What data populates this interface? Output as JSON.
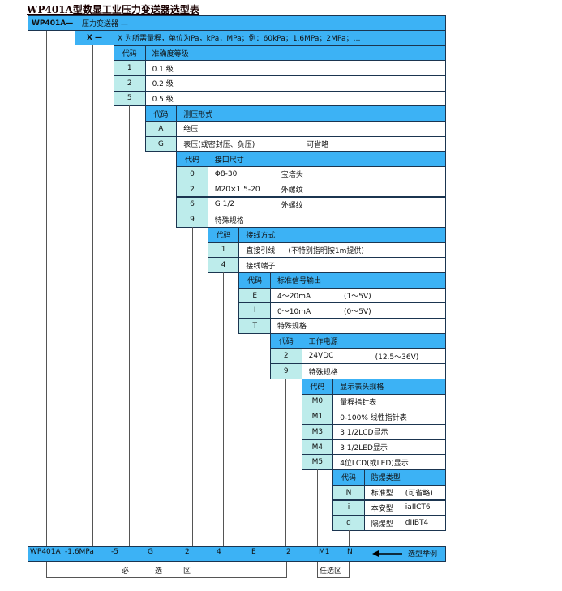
{
  "title": "WP401A型数显工业压力变送器选型表",
  "model_row": {
    "code": "WP401A—",
    "desc": "压力变送器 —"
  },
  "range_row": {
    "code": "X —",
    "desc": "X 为所需量程，单位为Pa，kPa，MPa；例：60kPa；1.6MPa；2MPa；…"
  },
  "blocks": [
    {
      "code_header": "代码",
      "title": "准确度等级",
      "rows": [
        {
          "code": "1",
          "desc": [
            "0.1 级"
          ]
        },
        {
          "code": "2",
          "desc": [
            "0.2 级"
          ]
        },
        {
          "code": "5",
          "desc": [
            "0.5 级"
          ]
        }
      ]
    },
    {
      "code_header": "代码",
      "title": "测压形式",
      "rows": [
        {
          "code": "A",
          "desc": [
            "绝压"
          ]
        },
        {
          "code": "G",
          "desc": [
            "表压(或密封压、负压)",
            "可省略"
          ]
        }
      ]
    },
    {
      "code_header": "代码",
      "title": "接口尺寸",
      "rows": [
        {
          "code": "0",
          "desc": [
            "Φ8-30",
            "宝塔头"
          ]
        },
        {
          "code": "2",
          "desc": [
            "M20×1.5-20",
            "外螺纹"
          ]
        },
        {
          "code": "6",
          "desc": [
            "G 1/2",
            "外螺纹"
          ]
        },
        {
          "code": "9",
          "desc": [
            "特殊规格"
          ]
        }
      ]
    },
    {
      "code_header": "代码",
      "title": "接线方式",
      "rows": [
        {
          "code": "1",
          "desc": [
            "直接引线",
            "(不特别指明按1m提供)"
          ]
        },
        {
          "code": "4",
          "desc": [
            "接线端子"
          ]
        }
      ]
    },
    {
      "code_header": "代码",
      "title": "标准信号输出",
      "rows": [
        {
          "code": "E",
          "desc": [
            "4～20mA",
            "(1～5V)"
          ]
        },
        {
          "code": "I",
          "desc": [
            "0～10mA",
            "(0～5V)"
          ]
        },
        {
          "code": "T",
          "desc": [
            "特殊规格"
          ]
        }
      ]
    },
    {
      "code_header": "代码",
      "title": "工作电源",
      "rows": [
        {
          "code": "2",
          "desc": [
            "24VDC",
            "(12.5～36V)"
          ]
        },
        {
          "code": "9",
          "desc": [
            "特殊规格"
          ]
        }
      ]
    },
    {
      "code_header": "代码",
      "title": "显示表头规格",
      "rows": [
        {
          "code": "M0",
          "desc": [
            "量程指针表"
          ]
        },
        {
          "code": "M1",
          "desc": [
            "0-100% 线性指针表"
          ]
        },
        {
          "code": "M3",
          "desc": [
            "3 1/2LCD显示"
          ]
        },
        {
          "code": "M4",
          "desc": [
            "3 1/2LED显示"
          ]
        },
        {
          "code": "M5",
          "desc": [
            "4位LCD(或LED)显示"
          ]
        }
      ]
    },
    {
      "code_header": "代码",
      "title": "防爆类型",
      "rows": [
        {
          "code": "N",
          "desc": [
            "标准型",
            "(可省略)"
          ]
        },
        {
          "code": "i",
          "desc": [
            "本安型",
            "iaIICT6"
          ]
        },
        {
          "code": "d",
          "desc": [
            "隔爆型",
            "dIIBT4"
          ]
        }
      ]
    }
  ],
  "example": {
    "items": [
      "WP401A",
      "-1.6MPa",
      "-5",
      "G",
      "2",
      "4",
      "E",
      "2",
      "M1",
      "N"
    ],
    "label": "选型举例",
    "arrow_icon": "left-arrow"
  },
  "zones": {
    "required": [
      "必",
      "选",
      "区"
    ],
    "optional": "任选区"
  },
  "colors": {
    "header": "#3cb2f5",
    "code_cell": "#bdeceb",
    "border": "#1b3550"
  }
}
